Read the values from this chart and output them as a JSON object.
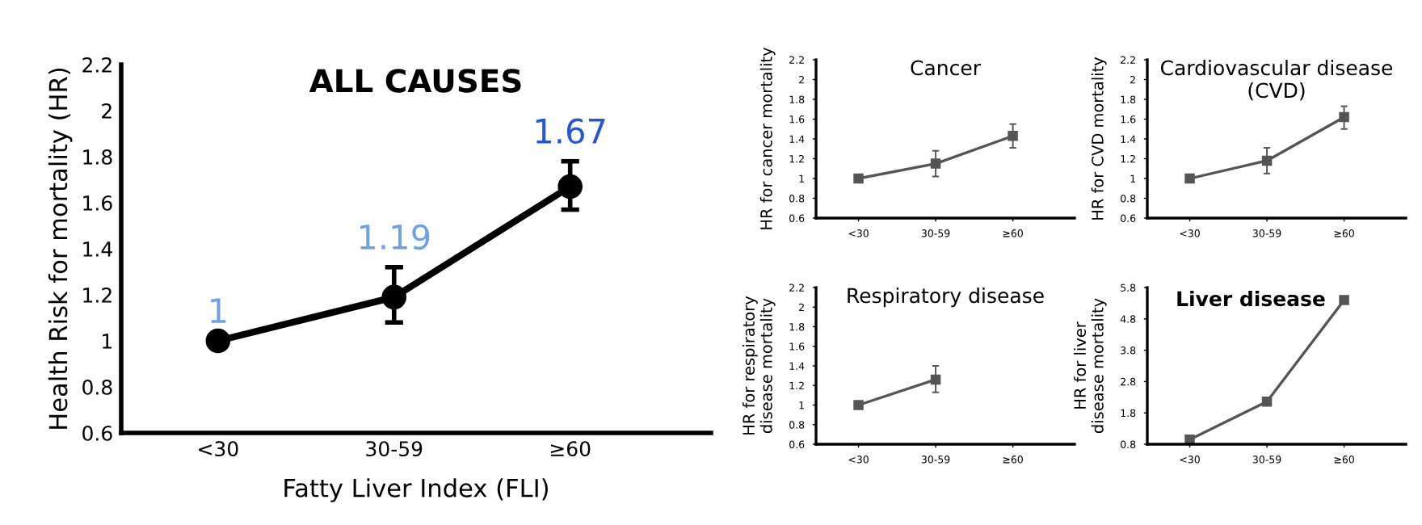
{
  "chart_data": [
    {
      "type": "line",
      "title": "ALL CAUSES",
      "xlabel": "Fatty Liver Index (FLI)",
      "ylabel": "Health Risk for mortality (HR)",
      "categories": [
        "<30",
        "30-59",
        "≥60"
      ],
      "series": [
        {
          "color": "#000000",
          "values": [
            1,
            1.19,
            1.67
          ],
          "errors": [
            null,
            [
              1.08,
              1.32
            ],
            [
              1.57,
              1.78
            ]
          ],
          "value_labels": [
            "1",
            "1.19",
            "1.67"
          ]
        }
      ],
      "ylim": [
        0.6,
        2.2
      ],
      "yticks": [
        0.6,
        0.8,
        1,
        1.2,
        1.4,
        1.6,
        1.8,
        2,
        2.2
      ],
      "marker": "circle",
      "grid": false,
      "legend": false
    },
    {
      "type": "line",
      "title": "Cancer",
      "ylabel": "HR for cancer mortality",
      "categories": [
        "<30",
        "30-59",
        "≥60"
      ],
      "series": [
        {
          "color": "#555555",
          "values": [
            1,
            1.15,
            1.43
          ],
          "errors": [
            null,
            [
              1.02,
              1.28
            ],
            [
              1.31,
              1.55
            ]
          ]
        }
      ],
      "ylim": [
        0.6,
        2.2
      ],
      "yticks": [
        0.6,
        0.8,
        1,
        1.2,
        1.4,
        1.6,
        1.8,
        2,
        2.2
      ],
      "marker": "square",
      "grid": false,
      "legend": false
    },
    {
      "type": "line",
      "title": "Cardiovascular disease (CVD)",
      "ylabel": "HR for CVD mortality",
      "categories": [
        "<30",
        "30-59",
        "≥60"
      ],
      "series": [
        {
          "color": "#555555",
          "values": [
            1,
            1.18,
            1.62
          ],
          "errors": [
            null,
            [
              1.05,
              1.31
            ],
            [
              1.5,
              1.73
            ]
          ]
        }
      ],
      "ylim": [
        0.6,
        2.2
      ],
      "yticks": [
        0.6,
        0.8,
        1,
        1.2,
        1.4,
        1.6,
        1.8,
        2,
        2.2
      ],
      "marker": "square",
      "grid": false,
      "legend": false
    },
    {
      "type": "line",
      "title": "Respiratory disease",
      "ylabel": "HR for respiratory disease mortality",
      "categories": [
        "<30",
        "30-59",
        "≥60"
      ],
      "series": [
        {
          "color": "#555555",
          "values": [
            1,
            1.26,
            null
          ],
          "errors": [
            null,
            [
              1.13,
              1.4
            ],
            null
          ]
        }
      ],
      "ylim": [
        0.6,
        2.2
      ],
      "yticks": [
        0.6,
        0.8,
        1,
        1.2,
        1.4,
        1.6,
        1.8,
        2,
        2.2
      ],
      "marker": "square",
      "grid": false,
      "legend": false
    },
    {
      "type": "line",
      "title": "Liver disease",
      "ylabel": "HR for liver disease mortality",
      "categories": [
        "<30",
        "30-59",
        "≥60"
      ],
      "series": [
        {
          "color": "#555555",
          "values": [
            0.95,
            2.16,
            5.4
          ]
        }
      ],
      "ylim": [
        0.8,
        5.8
      ],
      "yticks": [
        0.8,
        1.8,
        2.8,
        3.8,
        4.8,
        5.8
      ],
      "marker": "square",
      "grid": false,
      "legend": false
    }
  ]
}
